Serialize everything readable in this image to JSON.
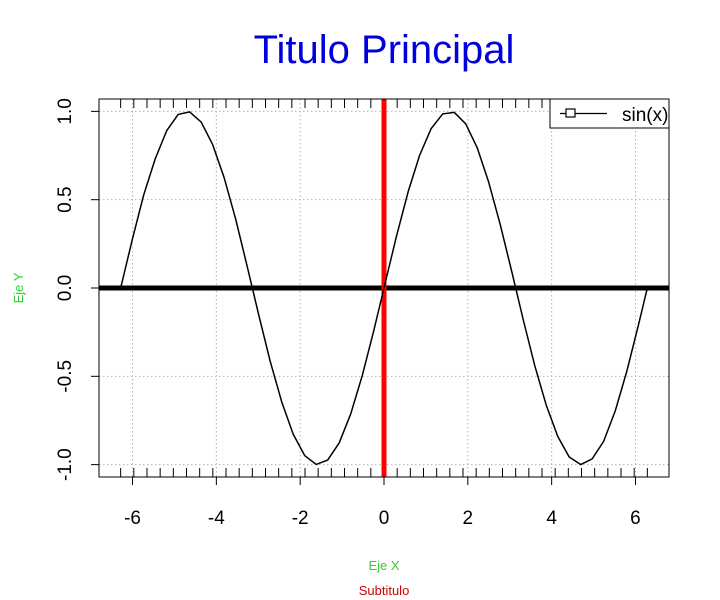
{
  "chart_data": {
    "type": "line",
    "title": "Titulo Principal",
    "subtitle": "Subtitulo",
    "xlabel": "Eje X",
    "ylabel": "Eje Y",
    "xlim": [
      -6.8,
      6.8
    ],
    "ylim": [
      -1.07,
      1.07
    ],
    "grid": true,
    "legend_position": "top-right",
    "x_ticks": [
      -6,
      -4,
      -2,
      0,
      2,
      4,
      6
    ],
    "x_tick_labels": [
      "-6",
      "-4",
      "-2",
      "0",
      "2",
      "4",
      "6"
    ],
    "y_ticks": [
      -1.0,
      -0.5,
      0.0,
      0.5,
      1.0
    ],
    "y_tick_labels": [
      "-1.0",
      "-0.5",
      "0.0",
      "0.5",
      "1.0"
    ],
    "x_minor_ticks": [
      -6.2832,
      -5.969,
      -5.6549,
      -5.3407,
      -5.0265,
      -4.7124,
      -4.3982,
      -4.0841,
      -3.7699,
      -3.4558,
      -3.1416,
      -2.8274,
      -2.5133,
      -2.1991,
      -1.885,
      -1.5708,
      -1.2566,
      -0.9425,
      -0.6283,
      -0.3142,
      0.0,
      0.3142,
      0.6283,
      0.9425,
      1.2566,
      1.5708,
      1.885,
      2.1991,
      2.5133,
      2.8274,
      3.1416,
      3.4558,
      3.7699,
      4.0841,
      4.3982,
      4.7124,
      5.0265,
      5.3407,
      5.6549,
      5.969,
      6.2832
    ],
    "reference_lines": [
      {
        "orientation": "horizontal",
        "value": 0,
        "color": "#000000"
      },
      {
        "orientation": "vertical",
        "value": 0,
        "color": "#ff0000"
      }
    ],
    "series": [
      {
        "name": "sin(x)",
        "color": "#000000",
        "x": [
          -6.2832,
          -6.0088,
          -5.7344,
          -5.46,
          -5.1856,
          -4.9112,
          -4.6368,
          -4.3624,
          -4.088,
          -3.8136,
          -3.5392,
          -3.2648,
          -2.9904,
          -2.716,
          -2.4416,
          -2.1672,
          -1.8928,
          -1.6184,
          -1.344,
          -1.0696,
          -0.7952,
          -0.5208,
          -0.2464,
          0.028,
          0.3024,
          0.5768,
          0.8512,
          1.1256,
          1.4,
          1.6744,
          1.9488,
          2.2232,
          2.4976,
          2.772,
          3.0464,
          3.3208,
          3.5952,
          3.8696,
          4.144,
          4.4184,
          4.6928,
          4.9672,
          5.2416,
          5.516,
          5.7904,
          6.0648,
          6.2832
        ],
        "y": [
          0.0,
          0.2712,
          0.5262,
          0.7302,
          0.8904,
          0.9826,
          0.997,
          0.9395,
          0.812,
          0.624,
          0.3902,
          0.1226,
          -0.1508,
          -0.4142,
          -0.6437,
          -0.8272,
          -0.9485,
          -0.9989,
          -0.9743,
          -0.8771,
          -0.7138,
          -0.4977,
          -0.2439,
          0.028,
          0.2978,
          0.5454,
          0.7522,
          0.9025,
          0.9854,
          0.9945,
          0.9295,
          0.7945,
          0.5993,
          0.3603,
          0.0951,
          -0.1784,
          -0.4377,
          -0.6621,
          -0.8394,
          -0.9568,
          -0.9995,
          -0.9674,
          -0.8675,
          -0.6965,
          -0.4741,
          -0.2155,
          0.0
        ]
      }
    ]
  }
}
